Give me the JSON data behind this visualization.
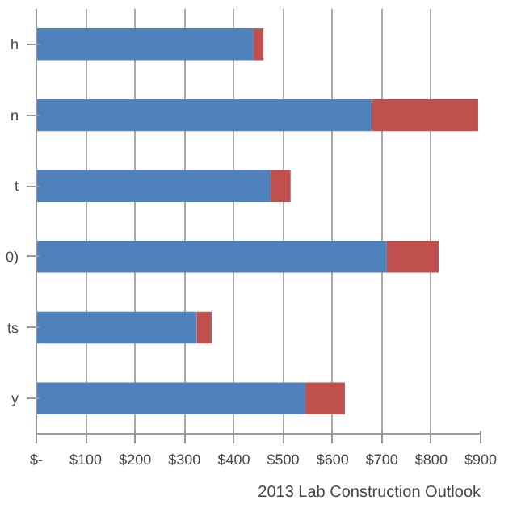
{
  "chart_data": {
    "type": "bar",
    "orientation": "horizontal",
    "stacked": true,
    "categories": [
      "h",
      "n",
      "t",
      "0)",
      "ts",
      "y"
    ],
    "series": [
      {
        "color": "#4f81bd",
        "values": [
          440,
          680,
          475,
          710,
          325,
          545
        ]
      },
      {
        "color": "#c0504d",
        "values": [
          20,
          215,
          40,
          105,
          30,
          80
        ]
      }
    ],
    "xlim": [
      0,
      900
    ],
    "xticks": [
      {
        "value": 0,
        "label": "$-"
      },
      {
        "value": 100,
        "label": "$100"
      },
      {
        "value": 200,
        "label": "$200"
      },
      {
        "value": 300,
        "label": "$300"
      },
      {
        "value": 400,
        "label": "$400"
      },
      {
        "value": 500,
        "label": "$500"
      },
      {
        "value": 600,
        "label": "$600"
      },
      {
        "value": 700,
        "label": "$700"
      },
      {
        "value": 800,
        "label": "$800"
      },
      {
        "value": 900,
        "label": "$900"
      }
    ],
    "grid": "x",
    "annotations": [
      "2013 Lab Construction Outlook"
    ]
  }
}
